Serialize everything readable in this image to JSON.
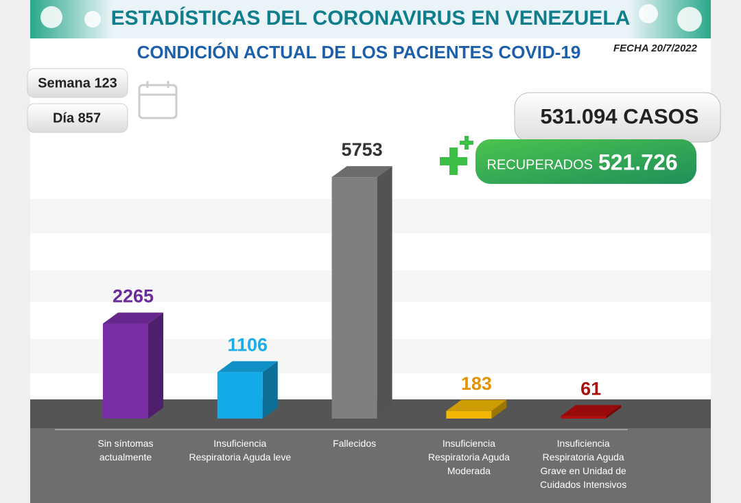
{
  "chart_data": {
    "type": "bar3d",
    "title": "ESTADÍSTICAS DEL CORONAVIRUS EN VENEZUELA",
    "subtitle": "CONDICIÓN ACTUAL DE LOS PACIENTES COVID-19",
    "date": "FECHA 20/7/2022",
    "week": "Semana 123",
    "day": "Día 857",
    "cases": "531.094 CASOS",
    "recovered_label": "RECUPERADOS",
    "recovered": "521.726",
    "categories": [
      "Sin síntomas actualmente",
      "Insuficiencia Respiratoria Aguda leve",
      "Fallecidos",
      "Insuficiencia Respiratoria Aguda Moderada",
      "Insuficiencia Respiratoria Aguda Grave en Unidad de Cuidados Intensivos"
    ],
    "values": [
      2265,
      1106,
      5753,
      183,
      61
    ],
    "colors": [
      "#7a2ea6",
      "#14a9e8",
      "#7f7f7f",
      "#f2b705",
      "#b40d0d"
    ],
    "label_colors": [
      "#6b2b9c",
      "#1badea",
      "#333333",
      "#e39400",
      "#a50f0f"
    ],
    "ylim": [
      0,
      6000
    ]
  }
}
